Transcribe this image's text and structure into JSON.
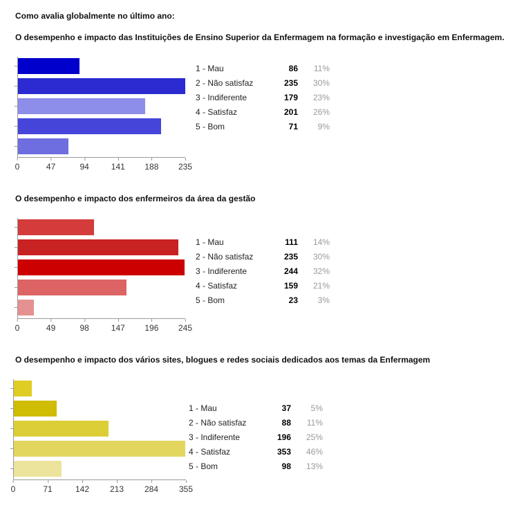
{
  "page_title": "Como avalia globalmente no último ano:",
  "colors": {
    "axis_line": "#999999",
    "axis_text": "#333333",
    "title_text": "#111111",
    "legend_label_text": "#222222",
    "legend_count_text": "#000000",
    "legend_percent_text": "#999999"
  },
  "chart_data": [
    {
      "type": "bar",
      "orientation": "horizontal",
      "title": "O desempenho e impacto das Instituições de Ensino Superior da Enfermagem na formação e investigação em Enfermagem.",
      "categories": [
        "1 - Mau",
        "2 - Não satisfaz",
        "3 - Indiferente",
        "4 - Satisfaz",
        "5 - Bom"
      ],
      "values": [
        86,
        235,
        179,
        201,
        71
      ],
      "percents": [
        "11%",
        "30%",
        "23%",
        "26%",
        "9%"
      ],
      "bar_colors": [
        "#0000CC",
        "#2B2BD1",
        "#8D8DEA",
        "#4545DA",
        "#6E6EE0"
      ],
      "axis_ticks": [
        0,
        47,
        94,
        141,
        188,
        235
      ],
      "xlim": [
        0,
        235
      ],
      "xlabel": "",
      "ylabel": "",
      "grid": false,
      "legend_position": "right"
    },
    {
      "type": "bar",
      "orientation": "horizontal",
      "title": "O desempenho e impacto dos enfermeiros da área da gestão",
      "categories": [
        "1 - Mau",
        "2 - Não satisfaz",
        "3 - Indiferente",
        "4 - Satisfaz",
        "5 - Bom"
      ],
      "values": [
        111,
        235,
        244,
        159,
        23
      ],
      "percents": [
        "14%",
        "30%",
        "32%",
        "21%",
        "3%"
      ],
      "bar_colors": [
        "#D43B3B",
        "#C92222",
        "#CC0000",
        "#DD6464",
        "#E59191"
      ],
      "axis_ticks": [
        0,
        49,
        98,
        147,
        196,
        245
      ],
      "xlim": [
        0,
        245
      ],
      "xlabel": "",
      "ylabel": "",
      "grid": false,
      "legend_position": "right"
    },
    {
      "type": "bar",
      "orientation": "horizontal",
      "title": "O desempenho e impacto dos vários sites, blogues e redes sociais dedicados aos temas da Enfermagem",
      "categories": [
        "1 - Mau",
        "2 - Não satisfaz",
        "3 - Indiferente",
        "4 - Satisfaz",
        "5 - Bom"
      ],
      "values": [
        37,
        88,
        196,
        353,
        98
      ],
      "percents": [
        "5%",
        "11%",
        "25%",
        "46%",
        "13%"
      ],
      "bar_colors": [
        "#DFCD24",
        "#CFBC04",
        "#DCCE37",
        "#E2D65E",
        "#ECE39C"
      ],
      "axis_ticks": [
        0,
        71,
        142,
        213,
        284,
        355
      ],
      "xlim": [
        0,
        355
      ],
      "xlabel": "",
      "ylabel": "",
      "grid": false,
      "legend_position": "right"
    }
  ]
}
